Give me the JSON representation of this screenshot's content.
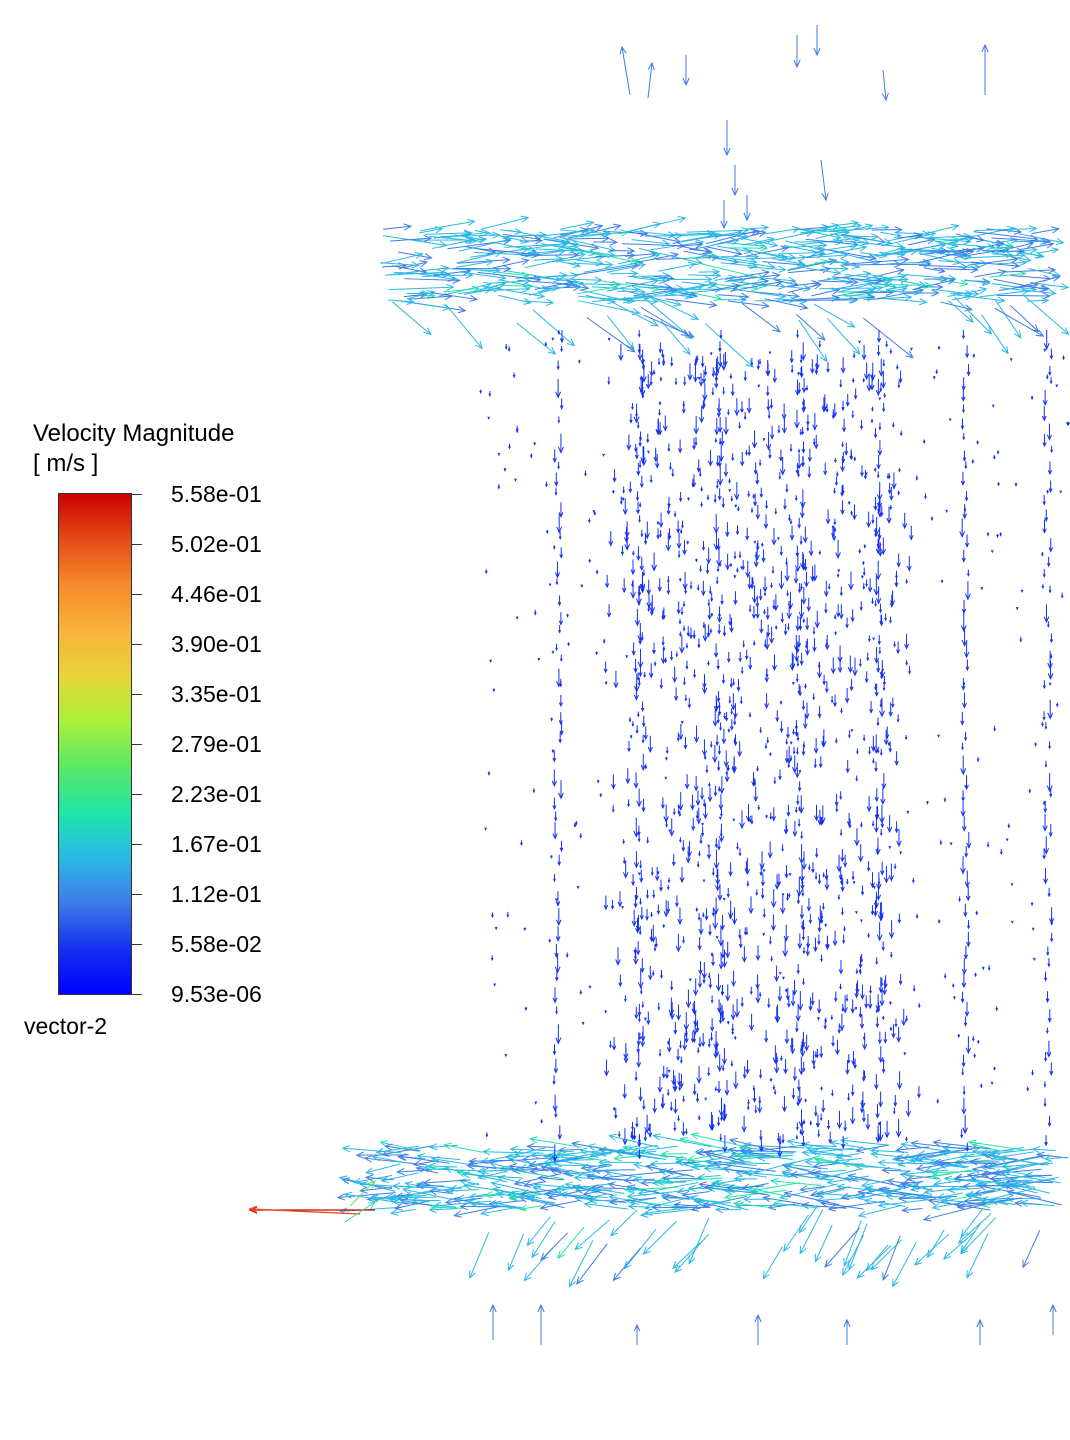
{
  "legend": {
    "title": "Velocity Magnitude",
    "units": "[ m/s ]",
    "ticks": [
      "5.58e-01",
      "5.02e-01",
      "4.46e-01",
      "3.90e-01",
      "3.35e-01",
      "2.79e-01",
      "2.23e-01",
      "1.67e-01",
      "1.12e-01",
      "5.58e-02",
      "9.53e-06"
    ],
    "footer": "vector-2",
    "colormap": [
      "#cc0000",
      "#e64a19",
      "#f58a2a",
      "#f9b23a",
      "#e7d43a",
      "#aaf03a",
      "#5be866",
      "#1fe6a6",
      "#2ab9e6",
      "#3f7be8",
      "#1430f0",
      "#0000ff"
    ]
  }
}
